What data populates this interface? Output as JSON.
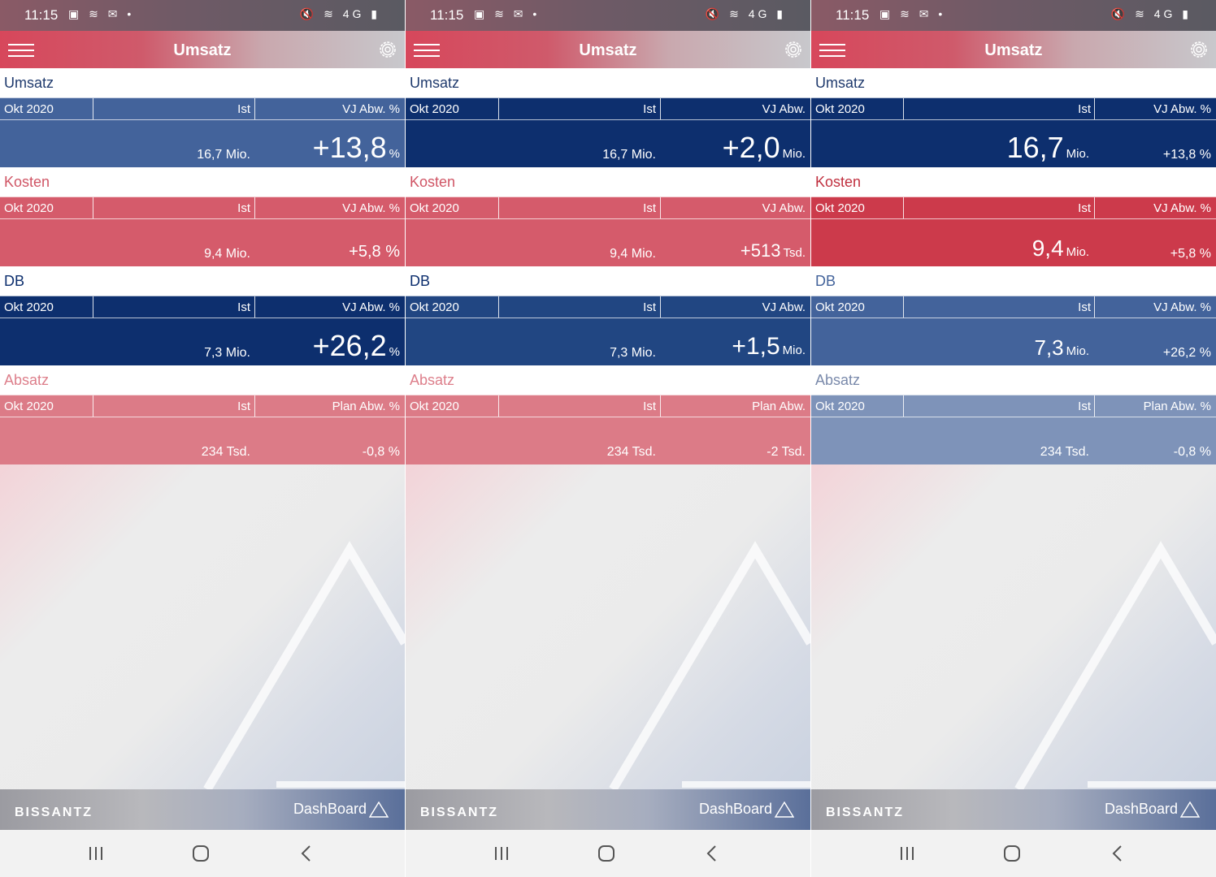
{
  "status_bar": {
    "time": "11:15",
    "left_icons": "▣ ≋ ✉ •",
    "right_icons": "🔇 ≋ 4G ▮"
  },
  "app_bar": {
    "title": "Umsatz"
  },
  "footer": {
    "brand": "BISSANTZ",
    "product": "DashBoard"
  },
  "colors": {
    "navy": "#0d2f6e",
    "blue": "#43639b",
    "blue_mid": "#214682",
    "blue_light": "#7e93b9",
    "red": "#cc3a4b",
    "red_mid": "#d55b6b",
    "red_light": "#dc7b87",
    "title_blue": "#1f3a6d",
    "title_red": "#d05565",
    "title_red_light": "#dd7f8b",
    "title_grey": "#7a8aab"
  },
  "icons": {
    "menu": "hamburger-icon",
    "settings": "gear-icon",
    "recent": "recent-apps-icon",
    "home": "home-icon",
    "back": "back-icon"
  },
  "screens": [
    {
      "sections": [
        {
          "title": "Umsatz",
          "period": "Okt 2020",
          "ist_label": "Ist",
          "dev_label": "VJ Abw. %",
          "ist_value": "16,7 Mio.",
          "dev_value": "+13,8",
          "dev_unit": "%"
        },
        {
          "title": "Kosten",
          "period": "Okt 2020",
          "ist_label": "Ist",
          "dev_label": "VJ Abw. %",
          "ist_value": "9,4 Mio.",
          "dev_value": "+5,8 %",
          "dev_unit": ""
        },
        {
          "title": "DB",
          "period": "Okt 2020",
          "ist_label": "Ist",
          "dev_label": "VJ Abw. %",
          "ist_value": "7,3 Mio.",
          "dev_value": "+26,2",
          "dev_unit": "%"
        },
        {
          "title": "Absatz",
          "period": "Okt 2020",
          "ist_label": "Ist",
          "dev_label": "Plan Abw. %",
          "ist_value": "234 Tsd.",
          "dev_value": "-0,8 %",
          "dev_unit": ""
        }
      ]
    },
    {
      "sections": [
        {
          "title": "Umsatz",
          "period": "Okt 2020",
          "ist_label": "Ist",
          "dev_label": "VJ Abw.",
          "ist_value": "16,7 Mio.",
          "dev_value": "+2,0",
          "dev_unit": "Mio."
        },
        {
          "title": "Kosten",
          "period": "Okt 2020",
          "ist_label": "Ist",
          "dev_label": "VJ Abw.",
          "ist_value": "9,4 Mio.",
          "dev_value": "+513",
          "dev_unit": "Tsd."
        },
        {
          "title": "DB",
          "period": "Okt 2020",
          "ist_label": "Ist",
          "dev_label": "VJ Abw.",
          "ist_value": "7,3 Mio.",
          "dev_value": "+1,5",
          "dev_unit": "Mio."
        },
        {
          "title": "Absatz",
          "period": "Okt 2020",
          "ist_label": "Ist",
          "dev_label": "Plan Abw.",
          "ist_value": "234 Tsd.",
          "dev_value": "-2 Tsd.",
          "dev_unit": ""
        }
      ]
    },
    {
      "sections": [
        {
          "title": "Umsatz",
          "period": "Okt 2020",
          "ist_label": "Ist",
          "dev_label": "VJ Abw. %",
          "ist_value": "16,7",
          "ist_unit": "Mio.",
          "dev_value": "+13,8 %"
        },
        {
          "title": "Kosten",
          "period": "Okt 2020",
          "ist_label": "Ist",
          "dev_label": "VJ Abw. %",
          "ist_value": "9,4",
          "ist_unit": "Mio.",
          "dev_value": "+5,8 %"
        },
        {
          "title": "DB",
          "period": "Okt 2020",
          "ist_label": "Ist",
          "dev_label": "VJ Abw. %",
          "ist_value": "7,3",
          "ist_unit": "Mio.",
          "dev_value": "+26,2 %"
        },
        {
          "title": "Absatz",
          "period": "Okt 2020",
          "ist_label": "Ist",
          "dev_label": "Plan Abw. %",
          "ist_value": "234 Tsd.",
          "ist_unit": "",
          "dev_value": "-0,8 %"
        }
      ]
    }
  ]
}
